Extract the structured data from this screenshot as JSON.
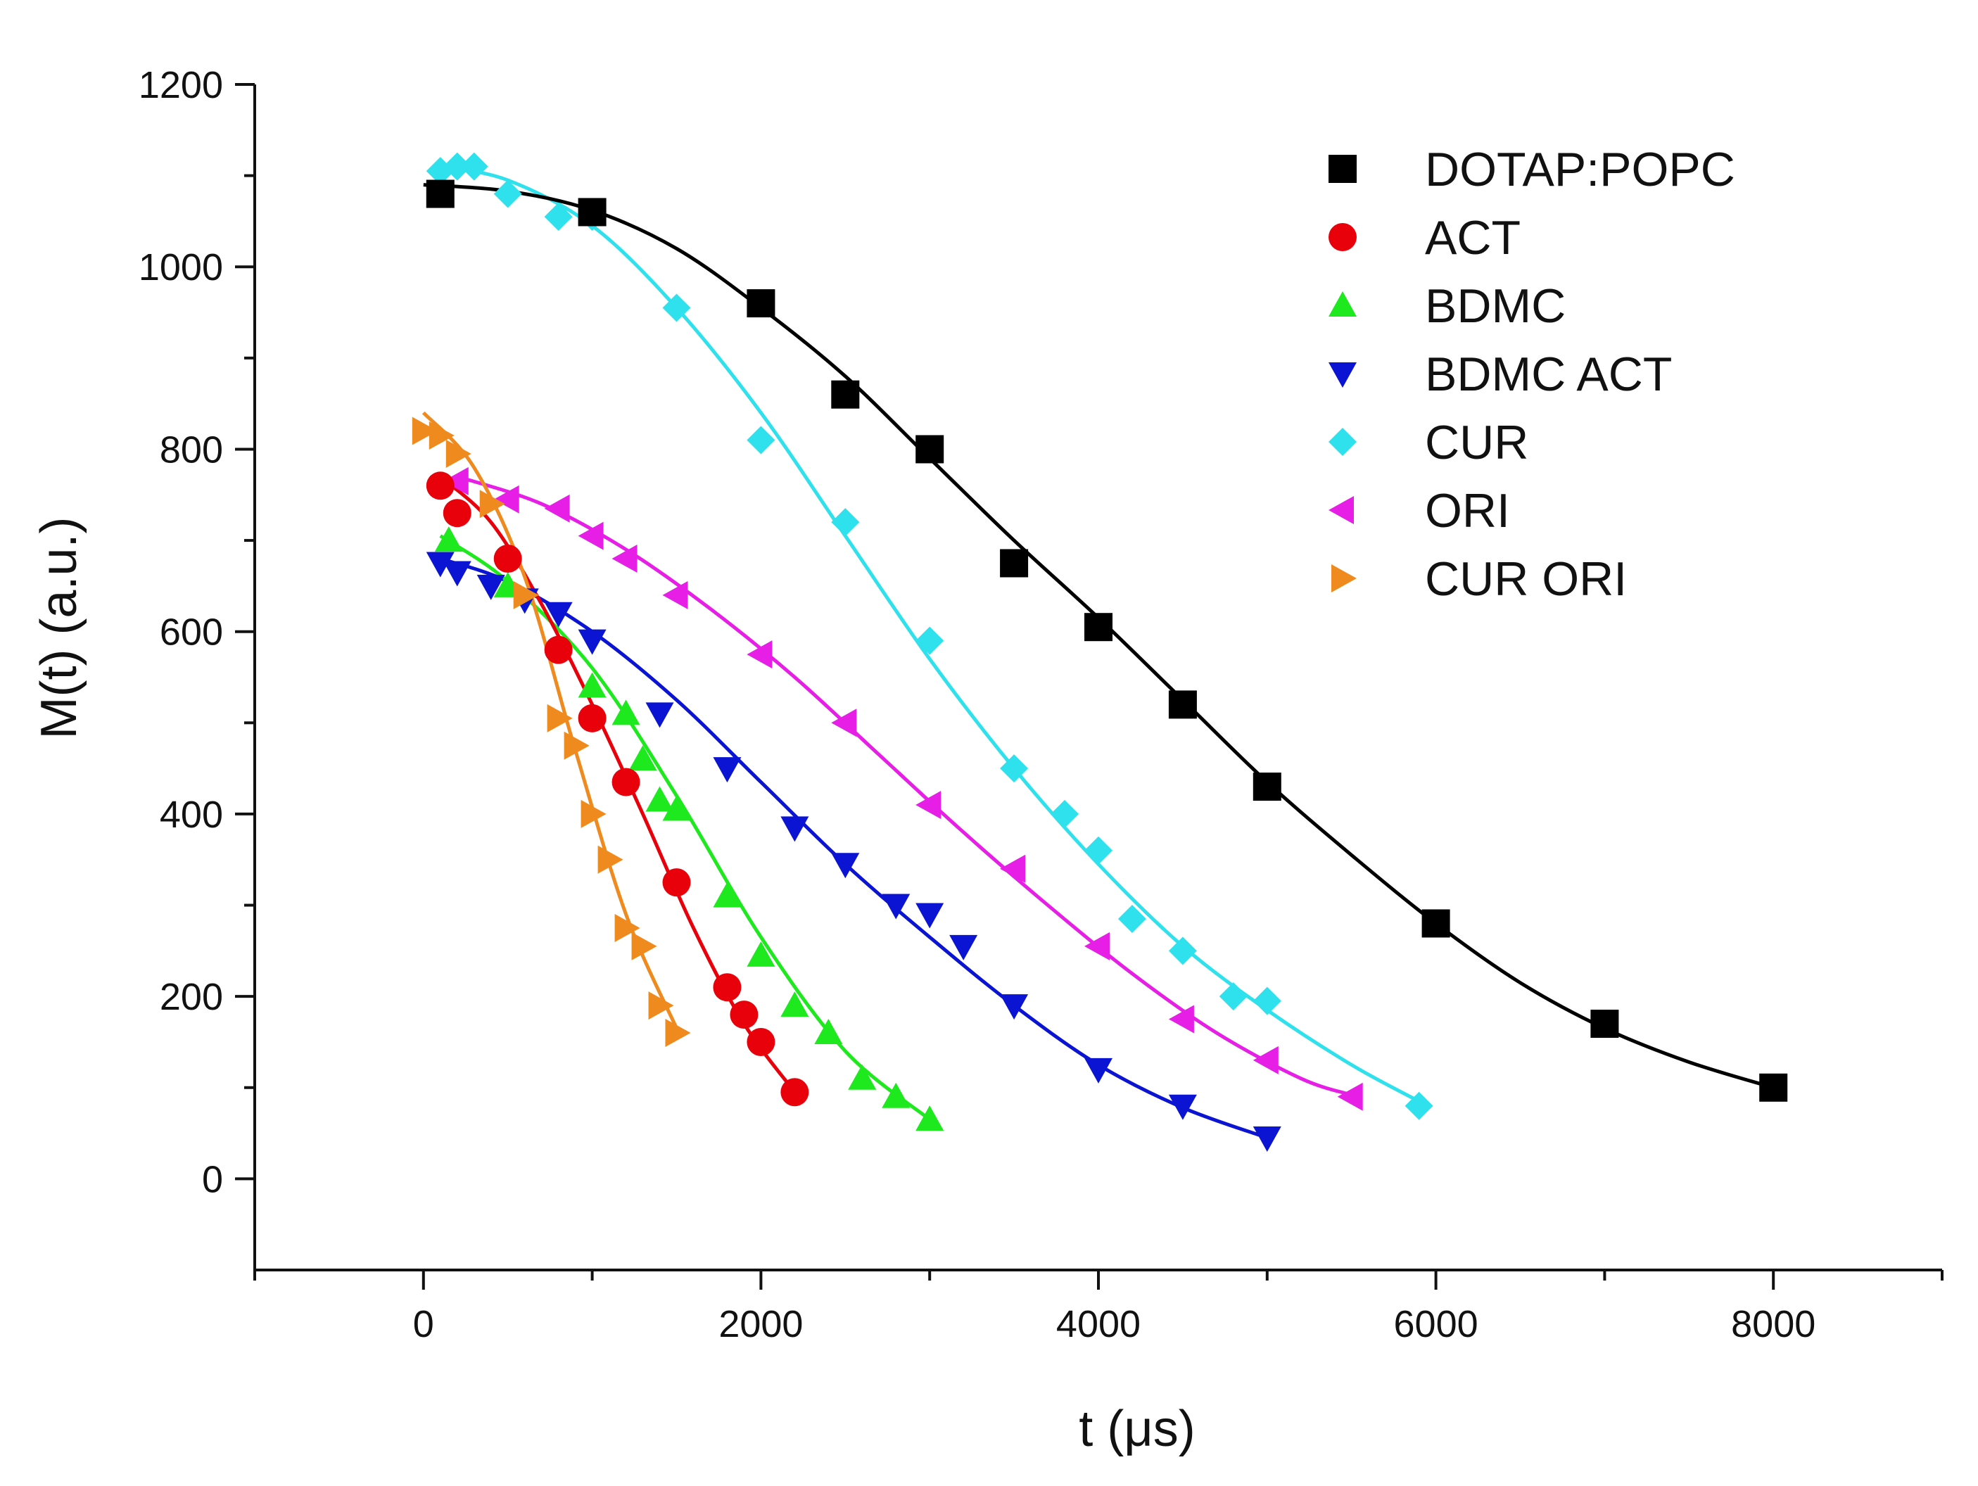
{
  "chart_data": {
    "type": "scatter",
    "title": "",
    "xlabel": "t (μs)",
    "ylabel": "M(t) (a.u.)",
    "xlim": [
      -1000,
      9000
    ],
    "ylim": [
      -100,
      1200
    ],
    "xticks": [
      0,
      2000,
      4000,
      6000,
      8000
    ],
    "yticks": [
      0,
      200,
      400,
      600,
      800,
      1000,
      1200
    ],
    "xticks_minor": [
      -1000,
      1000,
      3000,
      5000,
      7000,
      9000
    ],
    "yticks_minor": [
      100,
      300,
      500,
      700,
      900,
      1100
    ],
    "grid": false,
    "legend_position": "top-right",
    "series": [
      {
        "name": "DOTAP:POPC",
        "color": "#000000",
        "marker": "square",
        "x": [
          100,
          1000,
          2000,
          2500,
          3000,
          3500,
          4000,
          4500,
          5000,
          6000,
          7000,
          8000
        ],
        "y": [
          1080,
          1060,
          960,
          860,
          800,
          675,
          605,
          520,
          430,
          280,
          170,
          100
        ],
        "fit_x": [
          0,
          500,
          1000,
          1500,
          2000,
          2500,
          3000,
          3500,
          4000,
          4500,
          5000,
          5500,
          6000,
          6500,
          7000,
          7500,
          8000
        ],
        "fit_y": [
          1090,
          1083,
          1062,
          1020,
          955,
          880,
          790,
          700,
          615,
          525,
          435,
          355,
          280,
          215,
          165,
          128,
          100
        ]
      },
      {
        "name": "ACT",
        "color": "#e8000b",
        "marker": "circle",
        "x": [
          100,
          200,
          500,
          800,
          1000,
          1200,
          1500,
          1800,
          1900,
          2000,
          2200
        ],
        "y": [
          760,
          730,
          680,
          580,
          505,
          435,
          325,
          210,
          180,
          150,
          95
        ],
        "fit_x": [
          100,
          400,
          700,
          1000,
          1300,
          1600,
          1900,
          2200
        ],
        "fit_y": [
          770,
          720,
          630,
          520,
          400,
          275,
          170,
          95
        ]
      },
      {
        "name": "BDMC",
        "color": "#1ee81e",
        "marker": "triangle-up",
        "x": [
          150,
          500,
          1000,
          1200,
          1300,
          1400,
          1500,
          1800,
          2000,
          2200,
          2400,
          2600,
          2800,
          3000
        ],
        "y": [
          700,
          650,
          540,
          510,
          460,
          415,
          405,
          310,
          245,
          190,
          160,
          110,
          90,
          65
        ],
        "fit_x": [
          100,
          500,
          1000,
          1500,
          2000,
          2500,
          3000
        ],
        "fit_y": [
          705,
          655,
          560,
          420,
          265,
          140,
          65
        ]
      },
      {
        "name": "BDMC ACT",
        "color": "#0b14d2",
        "marker": "triangle-down",
        "x": [
          100,
          200,
          400,
          600,
          800,
          1000,
          1400,
          1800,
          2200,
          2500,
          2800,
          3000,
          3200,
          3500,
          4000,
          4500,
          5000
        ],
        "y": [
          675,
          665,
          650,
          635,
          620,
          590,
          510,
          450,
          385,
          345,
          300,
          290,
          255,
          190,
          120,
          80,
          45
        ],
        "fit_x": [
          100,
          500,
          1000,
          1500,
          2000,
          2500,
          3000,
          3500,
          4000,
          4500,
          5000
        ],
        "fit_y": [
          680,
          655,
          600,
          525,
          435,
          345,
          265,
          190,
          125,
          78,
          45
        ]
      },
      {
        "name": "CUR",
        "color": "#2ee1ec",
        "marker": "diamond",
        "x": [
          100,
          200,
          300,
          500,
          800,
          1000,
          1500,
          2000,
          2500,
          3000,
          3500,
          3800,
          4000,
          4200,
          4500,
          4800,
          5000,
          5900
        ],
        "y": [
          1105,
          1110,
          1110,
          1080,
          1055,
          1055,
          955,
          810,
          720,
          590,
          450,
          400,
          360,
          285,
          250,
          200,
          195,
          80
        ],
        "fit_x": [
          100,
          500,
          1000,
          1500,
          2000,
          2500,
          3000,
          3500,
          4000,
          4500,
          5000,
          5500,
          5900
        ],
        "fit_y": [
          1110,
          1095,
          1045,
          955,
          840,
          705,
          570,
          450,
          345,
          255,
          185,
          125,
          85
        ]
      },
      {
        "name": "ORI",
        "color": "#e61ee6",
        "marker": "triangle-left",
        "x": [
          200,
          500,
          800,
          1000,
          1200,
          1500,
          2000,
          2500,
          3000,
          3500,
          4000,
          4500,
          5000,
          5500
        ],
        "y": [
          765,
          745,
          735,
          705,
          680,
          640,
          575,
          500,
          410,
          340,
          255,
          175,
          130,
          90
        ],
        "fit_x": [
          200,
          700,
          1200,
          1700,
          2200,
          2700,
          3200,
          3700,
          4200,
          4700,
          5200,
          5500
        ],
        "fit_y": [
          770,
          740,
          690,
          625,
          550,
          465,
          380,
          300,
          225,
          160,
          110,
          92
        ]
      },
      {
        "name": "CUR ORI",
        "color": "#ee8a1e",
        "marker": "triangle-right",
        "x": [
          0,
          100,
          200,
          400,
          600,
          800,
          900,
          1000,
          1100,
          1200,
          1300,
          1400,
          1500
        ],
        "y": [
          820,
          815,
          795,
          740,
          640,
          505,
          475,
          400,
          350,
          275,
          255,
          190,
          160
        ],
        "fit_x": [
          0,
          300,
          600,
          900,
          1200,
          1500
        ],
        "fit_y": [
          840,
          780,
          660,
          470,
          290,
          165
        ]
      }
    ]
  }
}
